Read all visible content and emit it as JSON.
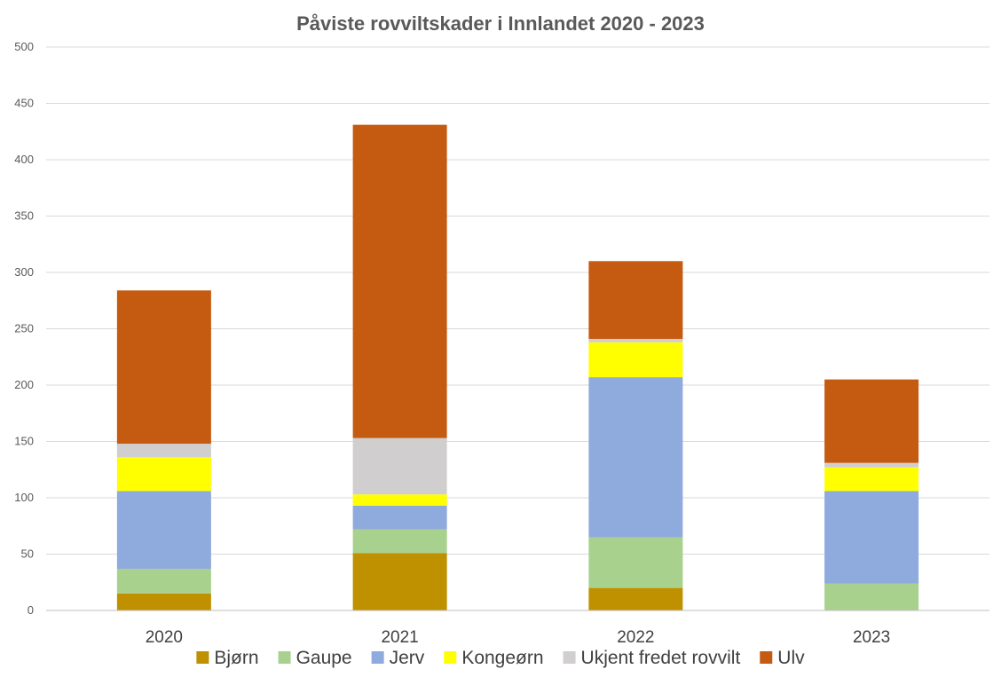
{
  "chart_data": {
    "type": "bar",
    "stacked": true,
    "title": "Påviste rovviltskader i Innlandet 2020 - 2023",
    "xlabel": "",
    "ylabel": "",
    "ylim": [
      0,
      500
    ],
    "yticks": [
      0,
      50,
      100,
      150,
      200,
      250,
      300,
      350,
      400,
      450,
      500
    ],
    "grid": true,
    "legend_position": "bottom",
    "categories": [
      "2020",
      "2021",
      "2022",
      "2023"
    ],
    "series": [
      {
        "name": "Bjørn",
        "color": "#BF9000",
        "values": [
          15,
          51,
          20,
          0
        ]
      },
      {
        "name": "Gaupe",
        "color": "#A9D18E",
        "values": [
          22,
          21,
          45,
          24
        ]
      },
      {
        "name": "Jerv",
        "color": "#8FAADC",
        "values": [
          69,
          21,
          142,
          82
        ]
      },
      {
        "name": "Kongeørn",
        "color": "#FFFF00",
        "values": [
          30,
          10,
          31,
          21
        ]
      },
      {
        "name": "Ukjent fredet rovvilt",
        "color": "#D0CECE",
        "values": [
          12,
          50,
          3,
          4
        ]
      },
      {
        "name": "Ulv",
        "color": "#C55A11",
        "values": [
          136,
          278,
          69,
          74
        ]
      }
    ]
  }
}
